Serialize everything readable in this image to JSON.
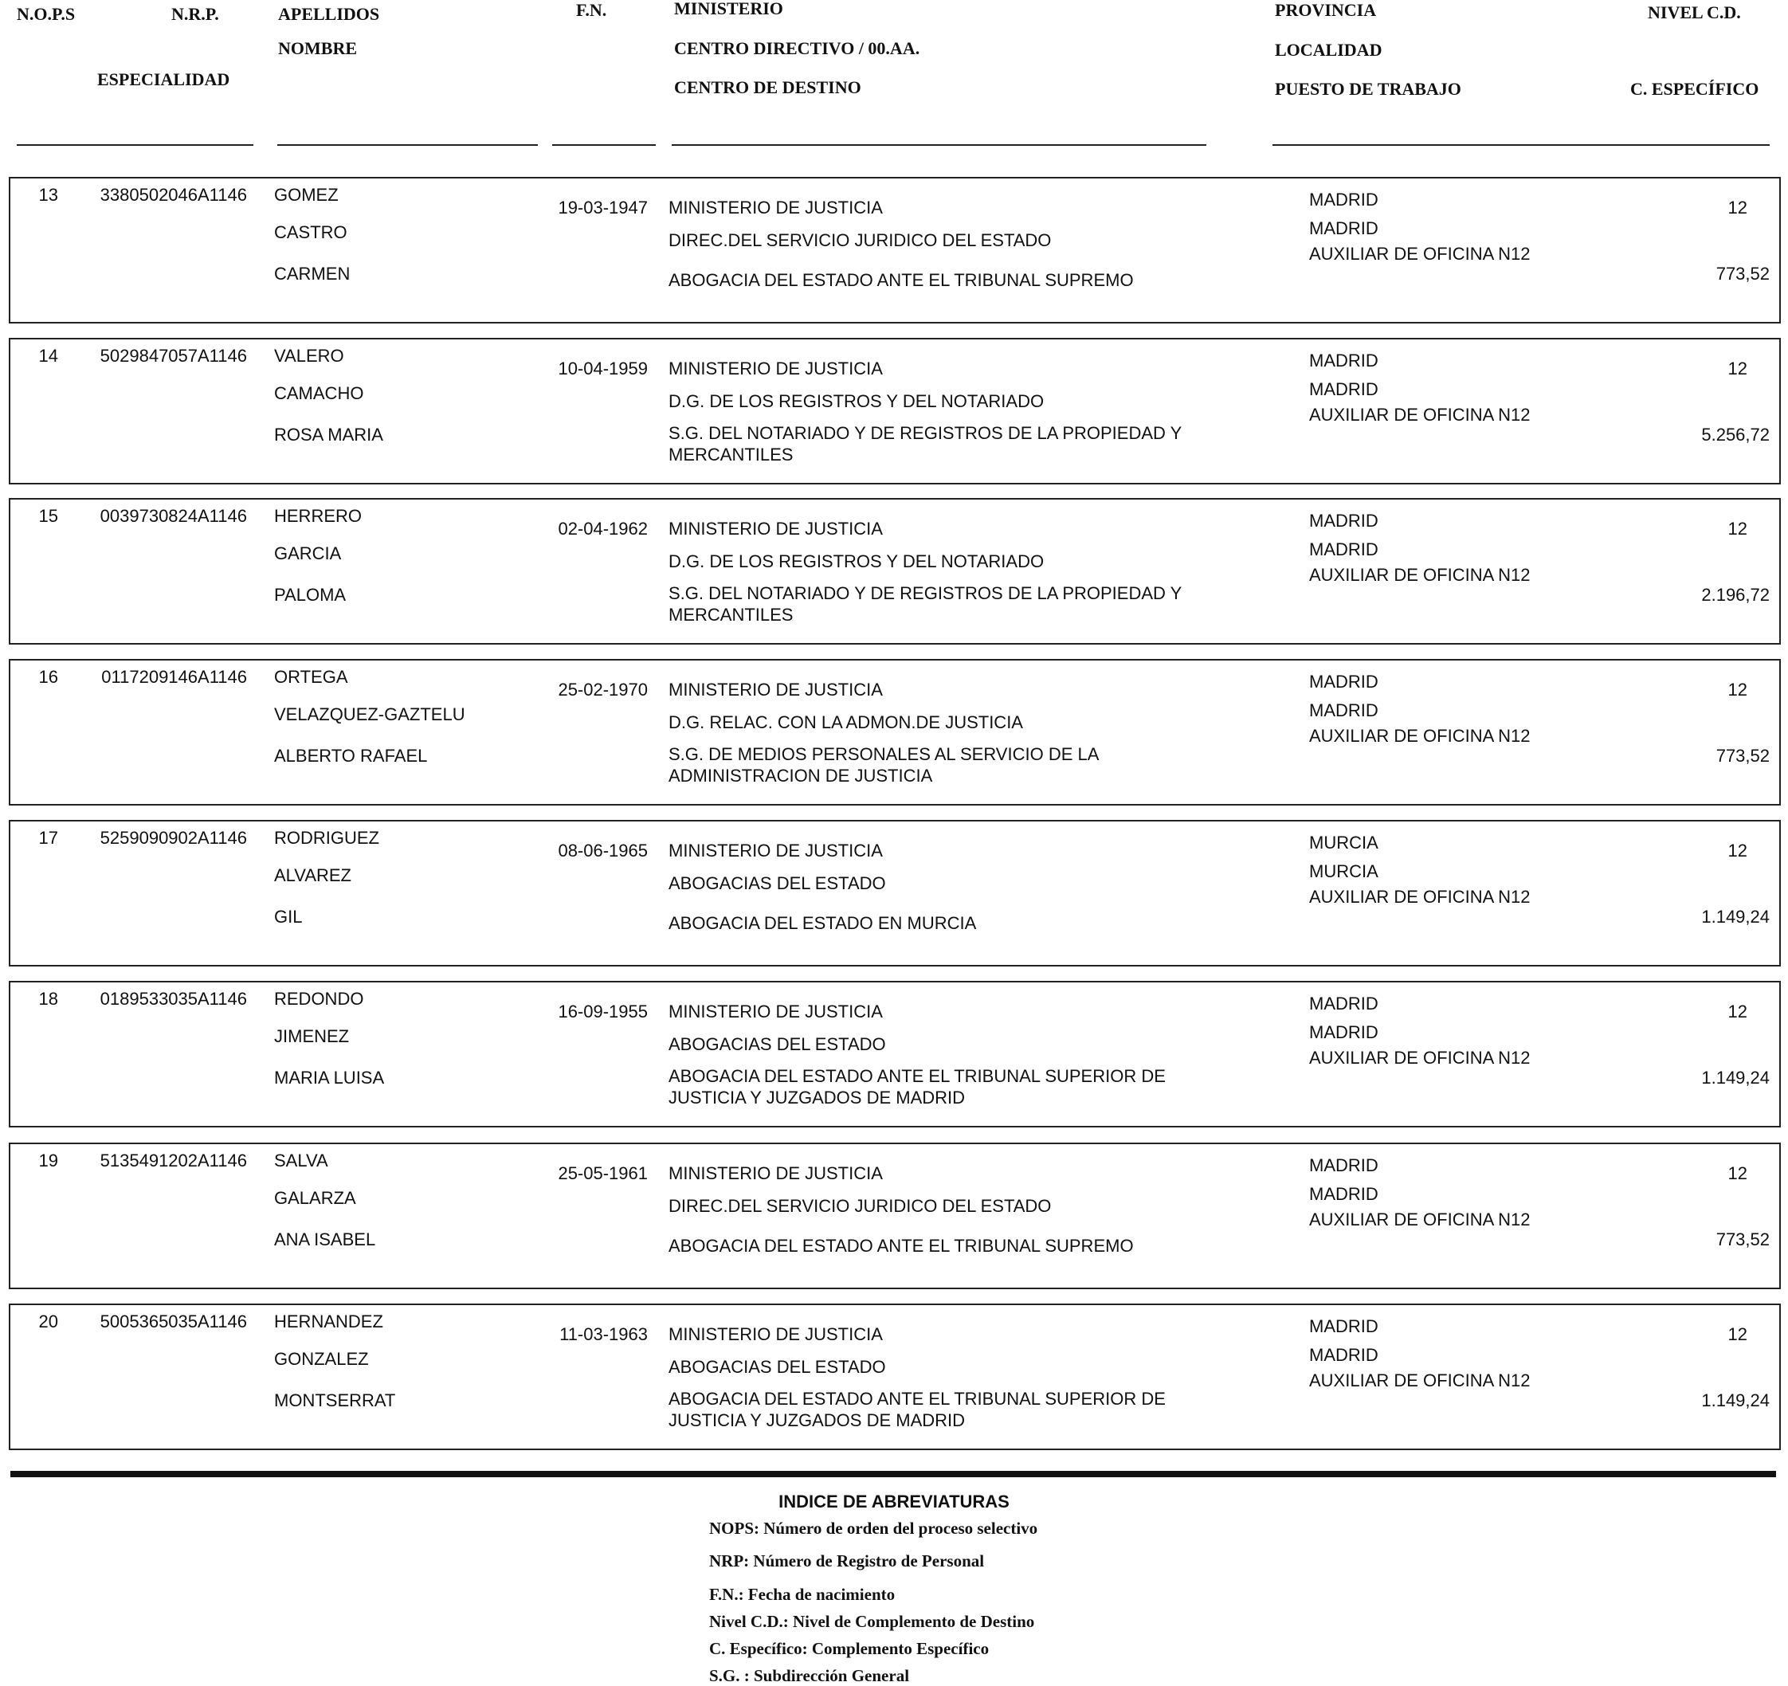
{
  "header": {
    "nops": "N.O.P.S",
    "nrp": "N.R.P.",
    "apellidos": "APELLIDOS",
    "nombre": "NOMBRE",
    "especialidad": "ESPECIALIDAD",
    "fn": "F.N.",
    "ministerio": "MINISTERIO",
    "centro_directivo": "CENTRO DIRECTIVO / 00.AA.",
    "centro_destino": "CENTRO DE DESTINO",
    "provincia": "PROVINCIA",
    "localidad": "LOCALIDAD",
    "puesto": "PUESTO DE TRABAJO",
    "nivel": "NIVEL C.D.",
    "especifico": "C. ESPECÍFICO"
  },
  "records": [
    {
      "nops": "13",
      "nrp": "3380502046A1146",
      "apellido1": "GOMEZ",
      "apellido2": "CASTRO",
      "nombre": "CARMEN",
      "fn": "19-03-1947",
      "ministerio": "MINISTERIO DE JUSTICIA",
      "centro_directivo": "DIREC.DEL SERVICIO JURIDICO DEL ESTADO",
      "centro_destino": [
        "ABOGACIA DEL ESTADO ANTE EL TRIBUNAL SUPREMO"
      ],
      "provincia": "MADRID",
      "localidad": "MADRID",
      "puesto": "AUXILIAR DE OFICINA N12",
      "nivel": "12",
      "especifico": "773,52"
    },
    {
      "nops": "14",
      "nrp": "5029847057A1146",
      "apellido1": "VALERO",
      "apellido2": "CAMACHO",
      "nombre": "ROSA MARIA",
      "fn": "10-04-1959",
      "ministerio": "MINISTERIO DE JUSTICIA",
      "centro_directivo": "D.G. DE LOS REGISTROS Y DEL NOTARIADO",
      "centro_destino": [
        "S.G. DEL NOTARIADO Y DE REGISTROS DE LA PROPIEDAD Y",
        "MERCANTILES"
      ],
      "provincia": "MADRID",
      "localidad": "MADRID",
      "puesto": "AUXILIAR DE OFICINA N12",
      "nivel": "12",
      "especifico": "5.256,72"
    },
    {
      "nops": "15",
      "nrp": "0039730824A1146",
      "apellido1": "HERRERO",
      "apellido2": "GARCIA",
      "nombre": "PALOMA",
      "fn": "02-04-1962",
      "ministerio": "MINISTERIO DE JUSTICIA",
      "centro_directivo": "D.G. DE LOS REGISTROS Y DEL NOTARIADO",
      "centro_destino": [
        "S.G. DEL NOTARIADO Y DE REGISTROS DE LA PROPIEDAD Y",
        "MERCANTILES"
      ],
      "provincia": "MADRID",
      "localidad": "MADRID",
      "puesto": "AUXILIAR DE OFICINA N12",
      "nivel": "12",
      "especifico": "2.196,72"
    },
    {
      "nops": "16",
      "nrp": "0117209146A1146",
      "apellido1": "ORTEGA",
      "apellido2": "VELAZQUEZ-GAZTELU",
      "nombre": "ALBERTO RAFAEL",
      "fn": "25-02-1970",
      "ministerio": "MINISTERIO DE JUSTICIA",
      "centro_directivo": "D.G. RELAC. CON LA ADMON.DE JUSTICIA",
      "centro_destino": [
        "S.G. DE MEDIOS PERSONALES AL SERVICIO DE LA",
        "ADMINISTRACION DE JUSTICIA"
      ],
      "provincia": "MADRID",
      "localidad": "MADRID",
      "puesto": "AUXILIAR DE OFICINA N12",
      "nivel": "12",
      "especifico": "773,52"
    },
    {
      "nops": "17",
      "nrp": "5259090902A1146",
      "apellido1": "RODRIGUEZ",
      "apellido2": "ALVAREZ",
      "nombre": "GIL",
      "fn": "08-06-1965",
      "ministerio": "MINISTERIO DE JUSTICIA",
      "centro_directivo": "ABOGACIAS DEL ESTADO",
      "centro_destino": [
        "ABOGACIA DEL ESTADO EN MURCIA"
      ],
      "provincia": "MURCIA",
      "localidad": "MURCIA",
      "puesto": "AUXILIAR DE OFICINA N12",
      "nivel": "12",
      "especifico": "1.149,24"
    },
    {
      "nops": "18",
      "nrp": "0189533035A1146",
      "apellido1": "REDONDO",
      "apellido2": "JIMENEZ",
      "nombre": "MARIA LUISA",
      "fn": "16-09-1955",
      "ministerio": "MINISTERIO DE JUSTICIA",
      "centro_directivo": "ABOGACIAS DEL ESTADO",
      "centro_destino": [
        "ABOGACIA DEL ESTADO ANTE EL TRIBUNAL SUPERIOR DE",
        "JUSTICIA Y JUZGADOS DE MADRID"
      ],
      "provincia": "MADRID",
      "localidad": "MADRID",
      "puesto": "AUXILIAR DE OFICINA N12",
      "nivel": "12",
      "especifico": "1.149,24"
    },
    {
      "nops": "19",
      "nrp": "5135491202A1146",
      "apellido1": "SALVA",
      "apellido2": "GALARZA",
      "nombre": "ANA ISABEL",
      "fn": "25-05-1961",
      "ministerio": "MINISTERIO DE JUSTICIA",
      "centro_directivo": "DIREC.DEL SERVICIO JURIDICO DEL ESTADO",
      "centro_destino": [
        "ABOGACIA DEL ESTADO ANTE EL TRIBUNAL SUPREMO"
      ],
      "provincia": "MADRID",
      "localidad": "MADRID",
      "puesto": "AUXILIAR DE OFICINA N12",
      "nivel": "12",
      "especifico": "773,52"
    },
    {
      "nops": "20",
      "nrp": "5005365035A1146",
      "apellido1": "HERNANDEZ",
      "apellido2": "GONZALEZ",
      "nombre": "MONTSERRAT",
      "fn": "11-03-1963",
      "ministerio": "MINISTERIO DE JUSTICIA",
      "centro_directivo": "ABOGACIAS DEL ESTADO",
      "centro_destino": [
        "ABOGACIA DEL ESTADO ANTE EL TRIBUNAL SUPERIOR DE",
        "JUSTICIA Y JUZGADOS DE MADRID"
      ],
      "provincia": "MADRID",
      "localidad": "MADRID",
      "puesto": "AUXILIAR DE OFICINA N12",
      "nivel": "12",
      "especifico": "1.149,24"
    }
  ],
  "footer": {
    "title": "INDICE DE ABREVIATURAS",
    "items": [
      "NOPS: Número de orden del proceso selectivo",
      "NRP: Número de Registro de Personal",
      "F.N.: Fecha de nacimiento",
      "Nivel C.D.: Nivel de Complemento de Destino",
      "C. Específico: Complemento Específico",
      "S.G. : Subdirección General"
    ]
  }
}
